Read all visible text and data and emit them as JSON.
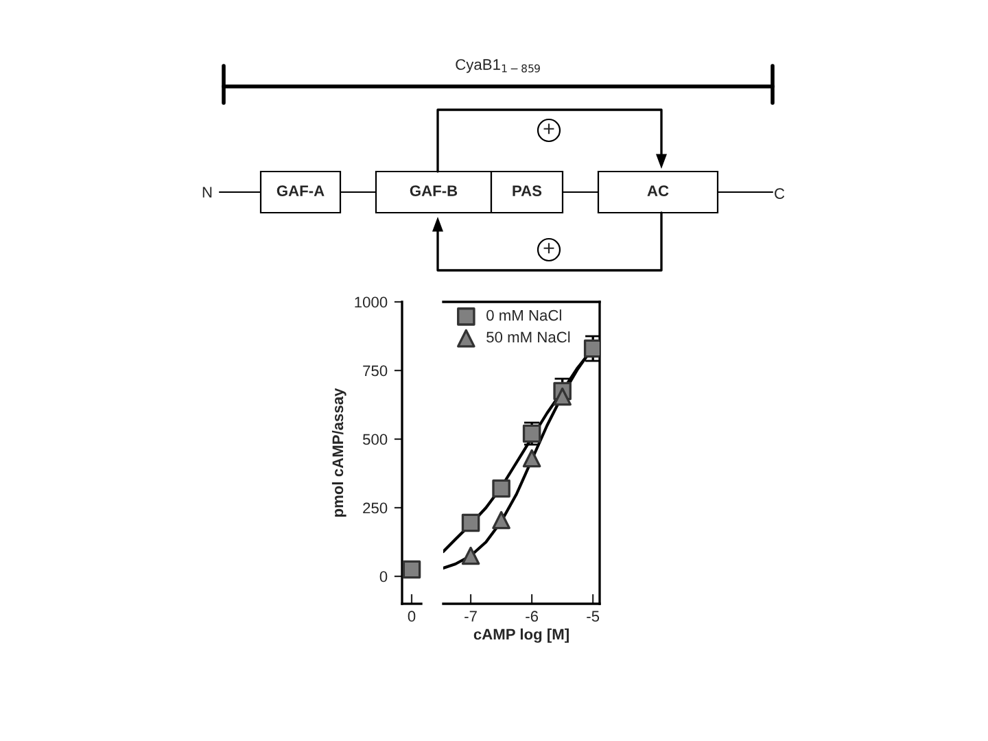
{
  "chart_data": [
    {
      "type": "other",
      "title": "CyaB1$_{1−859}$",
      "annotations": [
        "N",
        "GAF-A",
        "GAF-B",
        "PAS",
        "AC",
        "C",
        "+",
        "+"
      ]
    },
    {
      "type": "scatter",
      "categories": [
        "0"
      ],
      "ylim": [
        -100,
        1000
      ],
      "yticks": [
        0,
        250,
        500,
        750,
        1000
      ],
      "ylabel": "pmol cAMP/assay",
      "series": [
        {
          "color": "#808080",
          "marker": "square",
          "values": [
            25
          ]
        }
      ]
    },
    {
      "type": "scatter",
      "xlim": [
        -7.45,
        -4.89
      ],
      "xticks": [
        -7,
        -6,
        -5
      ],
      "ylim": [
        -100,
        1000
      ],
      "tick_labels": "x",
      "xlabel": "cAMP log [M]",
      "legend": "top left",
      "series": [
        {
          "name": "0 mM NaCl",
          "color": "#808080",
          "marker": "square",
          "x": [
            -7,
            -6.5,
            -6,
            -5.5,
            -5
          ],
          "values": [
            195,
            320,
            520,
            675,
            830
          ],
          "errors": [
            null,
            null,
            40,
            45,
            45
          ]
        },
        {
          "name": "50 mM NaCl",
          "color": "#808080",
          "marker": "triangle",
          "x": [
            -7,
            -6.5,
            -6,
            -5.5
          ],
          "values": [
            75,
            205,
            430,
            655
          ]
        },
        {
          "type": "line",
          "color": "#000000",
          "x": [
            -7.45,
            -7.25,
            -7,
            -6.75,
            -6.5,
            -6.25,
            -6,
            -5.75,
            -5.5,
            -5.25,
            -5
          ],
          "values": [
            90,
            135,
            190,
            250,
            325,
            415,
            505,
            595,
            675,
            760,
            830
          ]
        },
        {
          "type": "line",
          "color": "#000000",
          "x": [
            -7.45,
            -7.25,
            -7,
            -6.75,
            -6.5,
            -6.25,
            -6,
            -5.75,
            -5.5,
            -5.25,
            -5
          ],
          "values": [
            30,
            45,
            75,
            125,
            200,
            300,
            425,
            550,
            660,
            755,
            835
          ]
        }
      ]
    }
  ]
}
